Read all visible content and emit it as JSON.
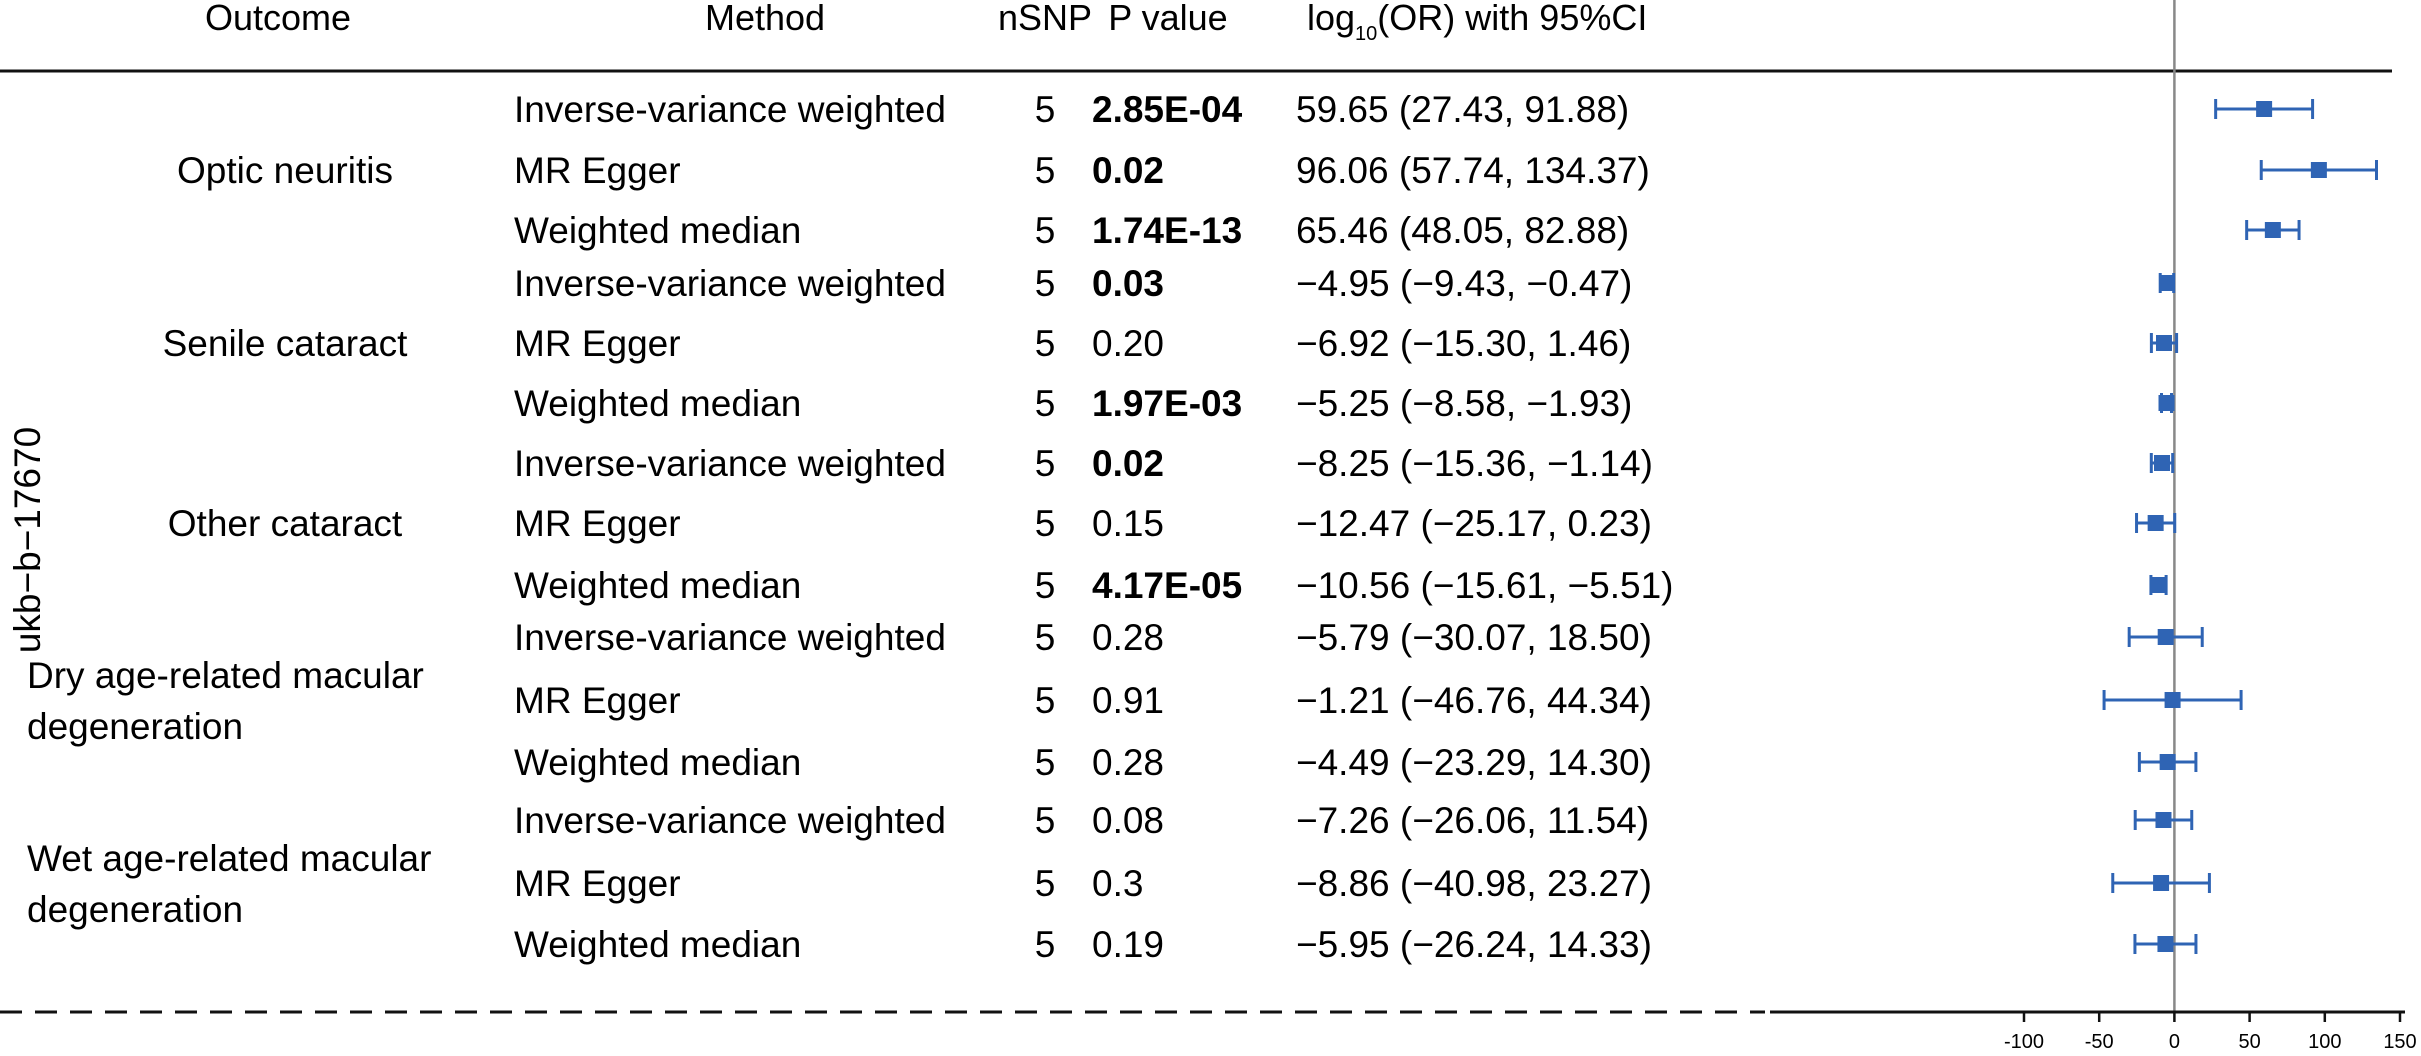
{
  "header": {
    "outcome": "Outcome",
    "method": "Method",
    "nsnp": "nSNP",
    "pvalue": "P value",
    "or_prefix": "log",
    "or_sub": "10",
    "or_suffix": "(OR) with 95%CI"
  },
  "exposure_label": "ukb−b−17670",
  "groups": [
    {
      "lines": [
        "Optic neuritis"
      ]
    },
    {
      "lines": [
        "Senile cataract"
      ]
    },
    {
      "lines": [
        "Other cataract"
      ]
    },
    {
      "lines": [
        "Dry age-related macular",
        "degeneration"
      ]
    },
    {
      "lines": [
        "Wet age-related macular",
        "degeneration"
      ]
    }
  ],
  "chart_data": {
    "type": "forest",
    "x_ticks": [
      -100,
      -50,
      0,
      50,
      100,
      150
    ],
    "xlim": [
      -100,
      150
    ],
    "reference_line": 0,
    "point_color": "#2f64b4",
    "reference_color": "#888888",
    "rows": [
      {
        "outcome": "Optic neuritis",
        "method": "Inverse-variance weighted",
        "nsnp": "5",
        "p": "2.85E-04",
        "bold": true,
        "est": 59.65,
        "lo": 27.43,
        "hi": 91.88,
        "ci_text": "59.65 (27.43, 91.88)"
      },
      {
        "outcome": "Optic neuritis",
        "method": "MR Egger",
        "nsnp": "5",
        "p": "0.02",
        "bold": true,
        "est": 96.06,
        "lo": 57.74,
        "hi": 134.37,
        "ci_text": "96.06 (57.74, 134.37)"
      },
      {
        "outcome": "Optic neuritis",
        "method": "Weighted median",
        "nsnp": "5",
        "p": "1.74E-13",
        "bold": true,
        "est": 65.46,
        "lo": 48.05,
        "hi": 82.88,
        "ci_text": "65.46 (48.05, 82.88)"
      },
      {
        "outcome": "Senile cataract",
        "method": "Inverse-variance weighted",
        "nsnp": "5",
        "p": "0.03",
        "bold": true,
        "est": -4.95,
        "lo": -9.43,
        "hi": -0.47,
        "ci_text": "−4.95 (−9.43, −0.47)"
      },
      {
        "outcome": "Senile cataract",
        "method": "MR Egger",
        "nsnp": "5",
        "p": "0.20",
        "bold": false,
        "est": -6.92,
        "lo": -15.3,
        "hi": 1.46,
        "ci_text": "−6.92 (−15.30, 1.46)"
      },
      {
        "outcome": "Senile cataract",
        "method": "Weighted median",
        "nsnp": "5",
        "p": "1.97E-03",
        "bold": true,
        "est": -5.25,
        "lo": -8.58,
        "hi": -1.93,
        "ci_text": "−5.25 (−8.58, −1.93)"
      },
      {
        "outcome": "Other cataract",
        "method": "Inverse-variance weighted",
        "nsnp": "5",
        "p": "0.02",
        "bold": true,
        "est": -8.25,
        "lo": -15.36,
        "hi": -1.14,
        "ci_text": "−8.25 (−15.36, −1.14)"
      },
      {
        "outcome": "Other cataract",
        "method": "MR Egger",
        "nsnp": "5",
        "p": "0.15",
        "bold": false,
        "est": -12.47,
        "lo": -25.17,
        "hi": 0.23,
        "ci_text": "−12.47 (−25.17, 0.23)"
      },
      {
        "outcome": "Other cataract",
        "method": "Weighted median",
        "nsnp": "5",
        "p": "4.17E-05",
        "bold": true,
        "est": -10.56,
        "lo": -15.61,
        "hi": -5.51,
        "ci_text": "−10.56 (−15.61, −5.51)"
      },
      {
        "outcome": "Dry age-related macular degeneration",
        "method": "Inverse-variance weighted",
        "nsnp": "5",
        "p": "0.28",
        "bold": false,
        "est": -5.79,
        "lo": -30.07,
        "hi": 18.5,
        "ci_text": "−5.79 (−30.07, 18.50)"
      },
      {
        "outcome": "Dry age-related macular degeneration",
        "method": "MR Egger",
        "nsnp": "5",
        "p": "0.91",
        "bold": false,
        "est": -1.21,
        "lo": -46.76,
        "hi": 44.34,
        "ci_text": "−1.21 (−46.76, 44.34)"
      },
      {
        "outcome": "Dry age-related macular degeneration",
        "method": "Weighted median",
        "nsnp": "5",
        "p": "0.28",
        "bold": false,
        "est": -4.49,
        "lo": -23.29,
        "hi": 14.3,
        "ci_text": "−4.49 (−23.29, 14.30)"
      },
      {
        "outcome": "Wet age-related macular degeneration",
        "method": "Inverse-variance weighted",
        "nsnp": "5",
        "p": "0.08",
        "bold": false,
        "est": -7.26,
        "lo": -26.06,
        "hi": 11.54,
        "ci_text": "−7.26 (−26.06, 11.54)"
      },
      {
        "outcome": "Wet age-related macular degeneration",
        "method": "MR Egger",
        "nsnp": "5",
        "p": "0.3",
        "bold": false,
        "est": -8.86,
        "lo": -40.98,
        "hi": 23.27,
        "ci_text": "−8.86 (−40.98, 23.27)"
      },
      {
        "outcome": "Wet age-related macular degeneration",
        "method": "Weighted median",
        "nsnp": "5",
        "p": "0.19",
        "bold": false,
        "est": -5.95,
        "lo": -26.24,
        "hi": 14.33,
        "ci_text": "−5.95 (−26.24, 14.33)"
      }
    ]
  }
}
